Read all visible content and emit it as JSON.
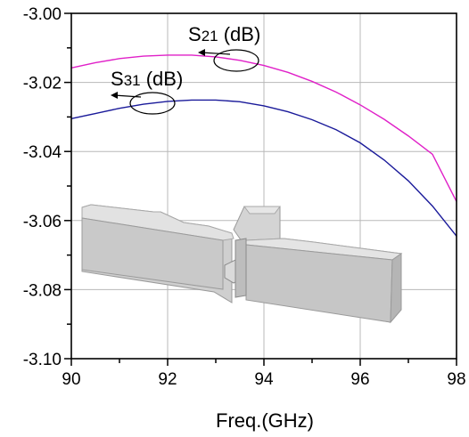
{
  "chart_data": {
    "type": "line",
    "xlabel": "Freq.(GHz)",
    "ylabel": "",
    "xlim": [
      90,
      98
    ],
    "ylim": [
      -3.1,
      -3.0
    ],
    "x_ticks": [
      90,
      92,
      94,
      96,
      98
    ],
    "x_tick_labels": [
      "90",
      "92",
      "94",
      "96",
      "98"
    ],
    "y_ticks": [
      -3.0,
      -3.02,
      -3.04,
      -3.06,
      -3.08,
      -3.1
    ],
    "y_tick_labels": [
      "-3.00",
      "-3.02",
      "-3.04",
      "-3.06",
      "-3.08",
      "-3.10"
    ],
    "grid": true,
    "x": [
      90,
      90.5,
      91,
      91.5,
      92,
      92.5,
      93,
      93.5,
      94,
      94.5,
      95,
      95.5,
      96,
      96.5,
      97,
      97.5,
      98
    ],
    "series": [
      {
        "annotation": {
          "prefix": "S",
          "sub": "21",
          "suffix": " (dB)"
        },
        "color": "#e020c8",
        "values": [
          -3.0158,
          -3.0143,
          -3.0131,
          -3.0124,
          -3.0121,
          -3.0121,
          -3.0126,
          -3.0136,
          -3.0151,
          -3.0171,
          -3.0197,
          -3.0228,
          -3.0265,
          -3.0307,
          -3.0355,
          -3.0408,
          -3.0545
        ]
      },
      {
        "annotation": {
          "prefix": "S",
          "sub": "31",
          "suffix": " (dB)"
        },
        "color": "#1a1a9a",
        "values": [
          -3.0305,
          -3.029,
          -3.0275,
          -3.0263,
          -3.0255,
          -3.0251,
          -3.0251,
          -3.0256,
          -3.0268,
          -3.0285,
          -3.0308,
          -3.0337,
          -3.0375,
          -3.0425,
          -3.0485,
          -3.0558,
          -3.0645
        ]
      }
    ]
  },
  "inset_image": {
    "description_icon": "waveguide-coupler-3d-model"
  }
}
